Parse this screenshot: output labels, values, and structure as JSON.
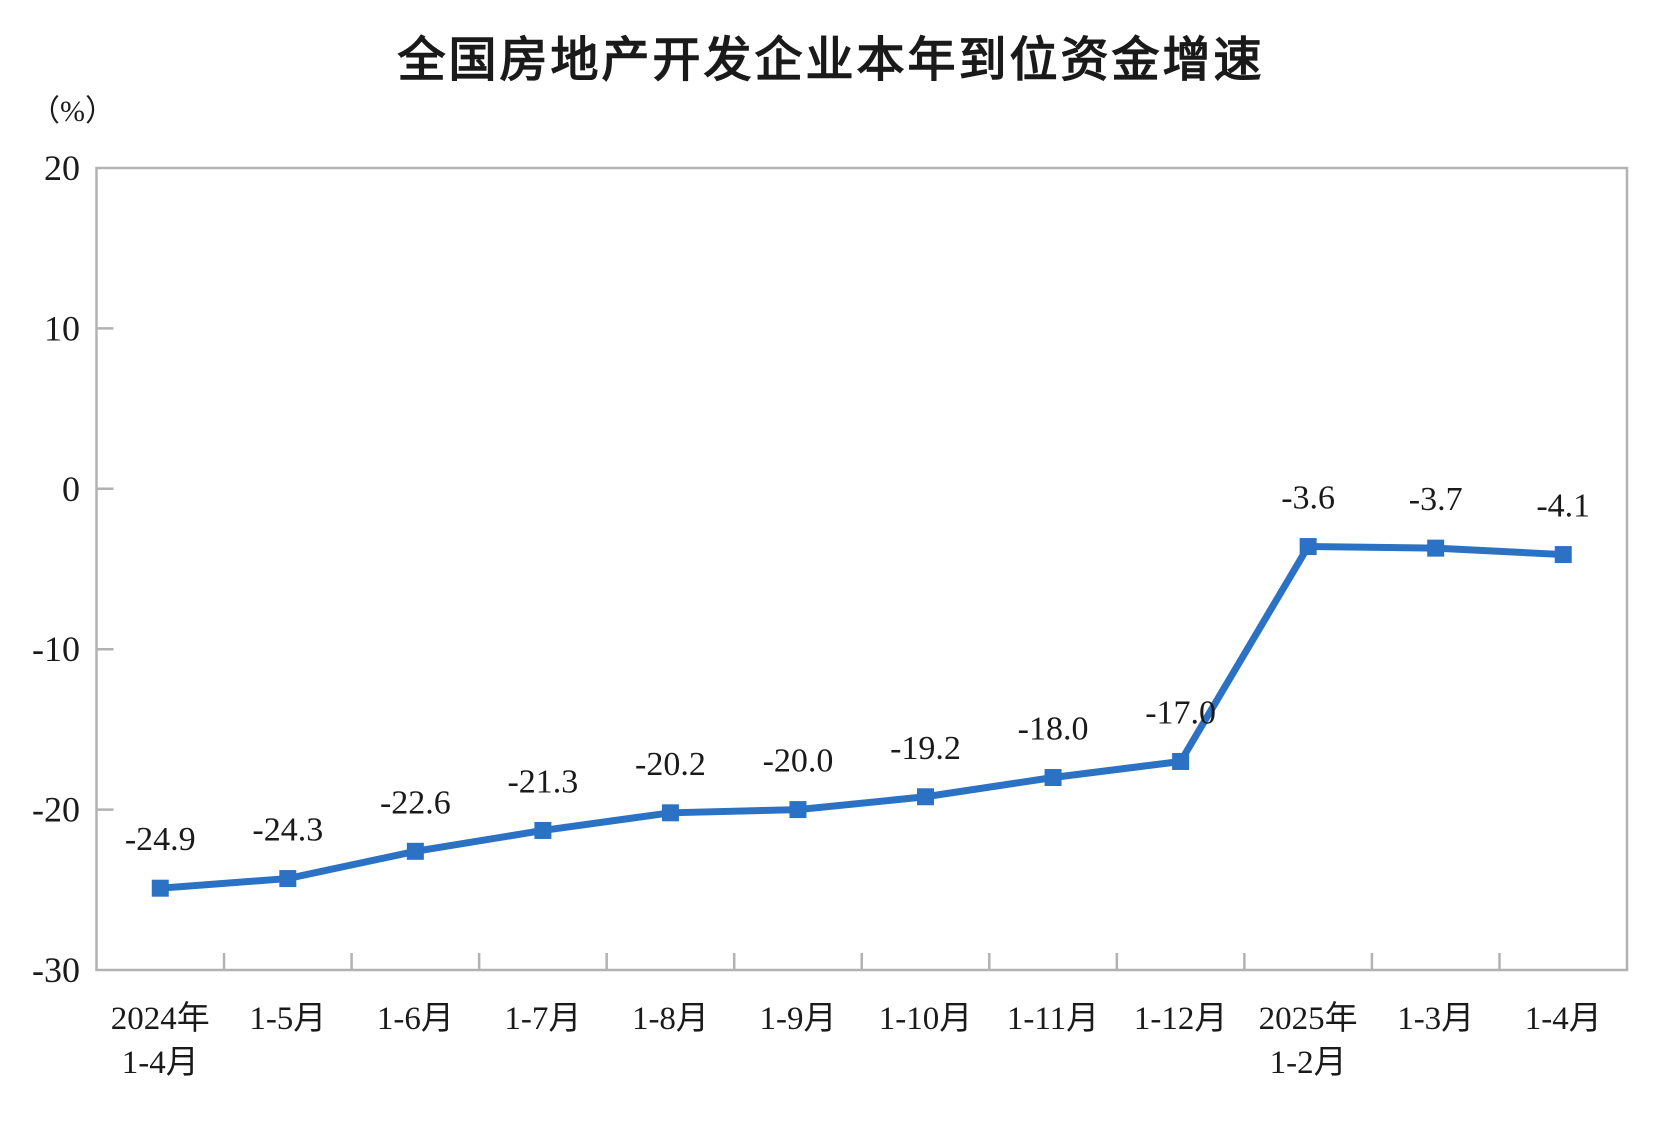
{
  "title": "全国房地产开发企业本年到位资金增速",
  "unit_label": "（%）",
  "chart_data": {
    "type": "line",
    "title": "全国房地产开发企业本年到位资金增速",
    "ylabel": "（%）",
    "xlabel": "",
    "categories": [
      "2024年\n1-4月",
      "1-5月",
      "1-6月",
      "1-7月",
      "1-8月",
      "1-9月",
      "1-10月",
      "1-11月",
      "1-12月",
      "2025年\n1-2月",
      "1-3月",
      "1-4月"
    ],
    "values": [
      -24.9,
      -24.3,
      -22.6,
      -21.3,
      -20.2,
      -20.0,
      -19.2,
      -18.0,
      -17.0,
      -3.6,
      -3.7,
      -4.1
    ],
    "data_labels": [
      "-24.9",
      "-24.3",
      "-22.6",
      "-21.3",
      "-20.2",
      "-20.0",
      "-19.2",
      "-18.0",
      "-17.0",
      "-3.6",
      "-3.7",
      "-4.1"
    ],
    "ylim": [
      -30,
      20
    ],
    "yticks": [
      20,
      10,
      0,
      -10,
      -20,
      -30
    ],
    "grid": false,
    "legend": "none",
    "marker": "square",
    "colors": {
      "line": "#2b72c4",
      "marker": "#2b72c4",
      "axis": "#b2b2b2",
      "text": "#1a1a1a"
    }
  }
}
